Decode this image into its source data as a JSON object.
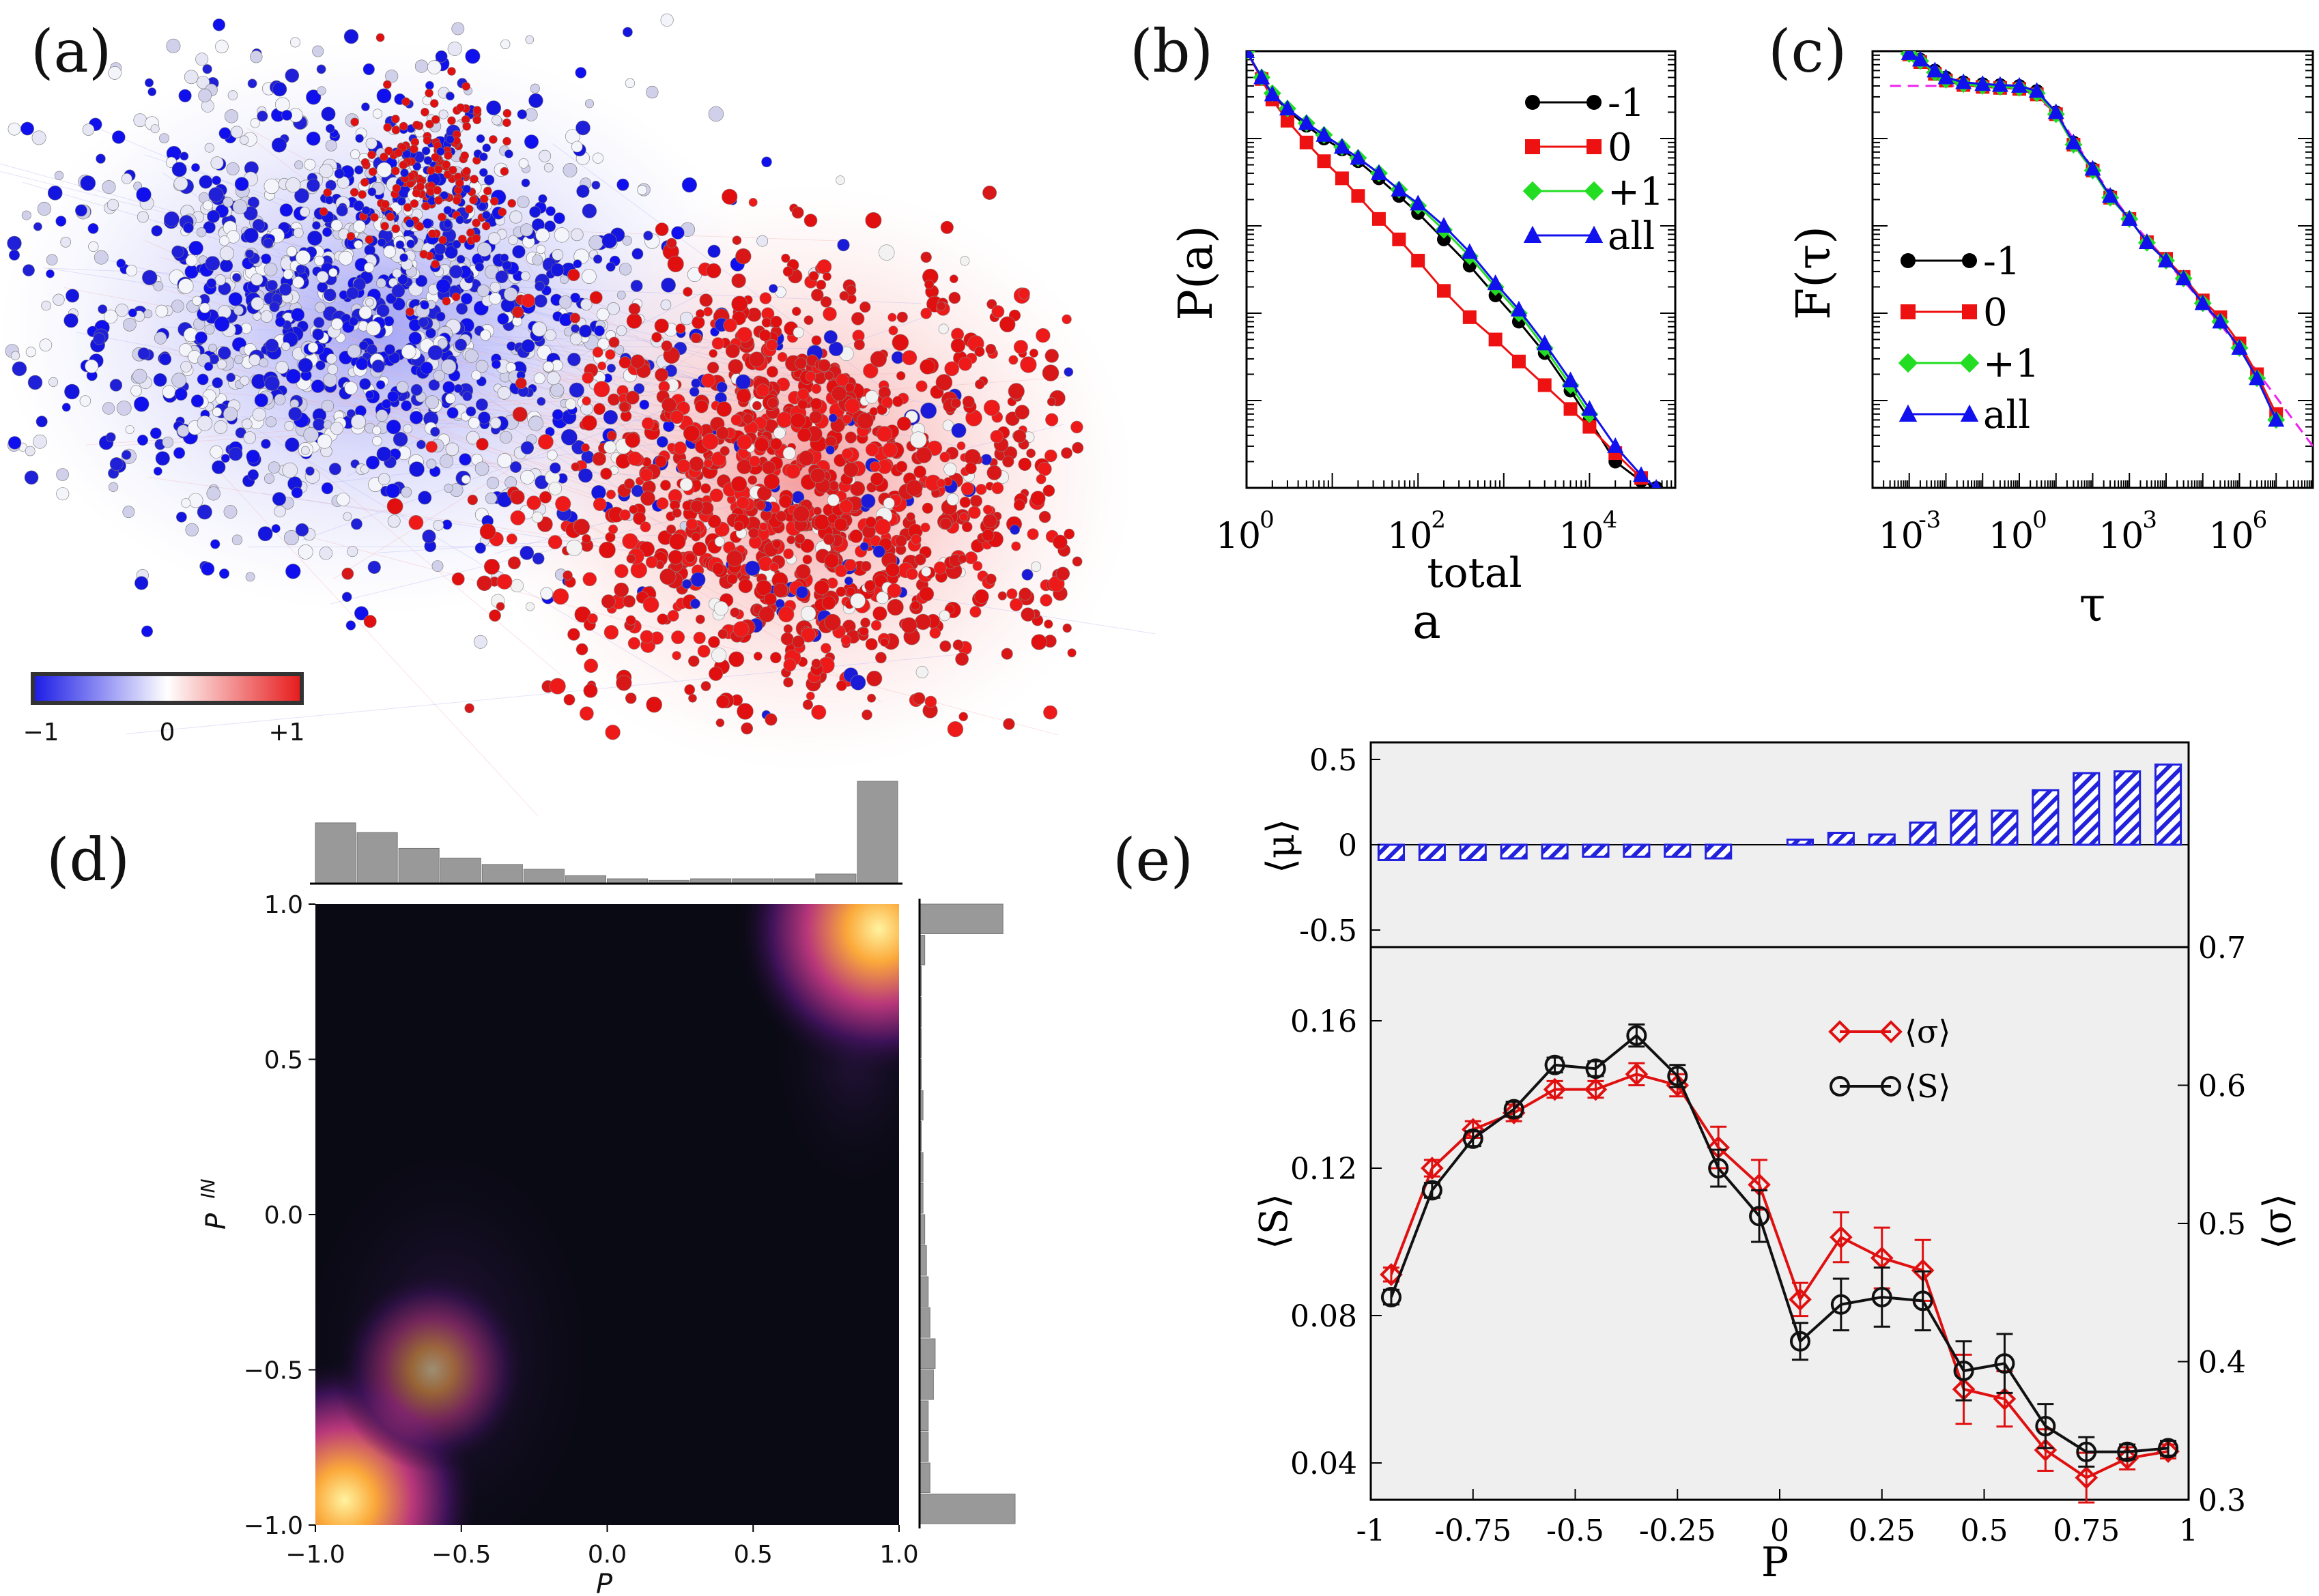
{
  "panel_labels": [
    "(a)",
    "(b)",
    "(c)",
    "(d)",
    "(e)"
  ],
  "colorbar": {
    "ticks": [
      "−1",
      "0",
      "+1"
    ],
    "colors": [
      "#1a1ae6",
      "#ffffff",
      "#e61a1a"
    ]
  },
  "chart_data": [
    {
      "id": "a",
      "type": "network",
      "colorbar": {
        "min": -1,
        "max": 1,
        "tick_labels": [
          "−1",
          "0",
          "+1"
        ]
      }
    },
    {
      "id": "b",
      "type": "line",
      "log_x": true,
      "log_y": true,
      "xlabel": "a",
      "xlabel_sup": "total",
      "ylabel": "P(a)",
      "x_ticks": [
        1,
        100,
        10000
      ],
      "x_tick_labels": [
        "10",
        "10",
        "10"
      ],
      "x_tick_exps": [
        "0",
        "2",
        "4"
      ],
      "xlim": [
        1,
        100000
      ],
      "ylim": [
        1e-05,
        1
      ],
      "legend": [
        "-1",
        "0",
        "+1",
        "all"
      ],
      "legend_position": "top-right",
      "colors": {
        "-1": "#000000",
        "0": "#ee1111",
        "+1": "#22dd22",
        "all": "#1111ee"
      },
      "series": [
        {
          "name": "-1",
          "marker": "circle",
          "x": [
            1,
            1.5,
            2,
            3,
            5,
            8,
            13,
            20,
            35,
            60,
            100,
            200,
            400,
            800,
            1500,
            3000,
            6000,
            10000,
            20000,
            40000,
            60000
          ],
          "y": [
            1,
            0.5,
            0.32,
            0.21,
            0.14,
            0.1,
            0.075,
            0.055,
            0.035,
            0.022,
            0.014,
            0.007,
            0.0035,
            0.0016,
            0.0008,
            0.00035,
            0.00013,
            6e-05,
            2e-05,
            1.2e-05,
            1e-05
          ]
        },
        {
          "name": "0",
          "marker": "square",
          "x": [
            1,
            1.5,
            2,
            3,
            5,
            8,
            13,
            20,
            35,
            60,
            100,
            200,
            400,
            800,
            1500,
            3000,
            6000,
            10000,
            20000,
            40000
          ],
          "y": [
            1,
            0.48,
            0.28,
            0.16,
            0.09,
            0.055,
            0.035,
            0.022,
            0.012,
            0.007,
            0.004,
            0.0018,
            0.0009,
            0.0005,
            0.00028,
            0.00015,
            8e-05,
            5e-05,
            2.5e-05,
            1.3e-05
          ]
        },
        {
          "name": "+1",
          "marker": "diamond",
          "x": [
            1,
            1.5,
            2,
            3,
            5,
            8,
            13,
            20,
            35,
            60,
            100,
            200,
            400,
            800,
            1500,
            3000,
            6000,
            10000
          ],
          "y": [
            1,
            0.5,
            0.33,
            0.22,
            0.15,
            0.11,
            0.08,
            0.06,
            0.04,
            0.026,
            0.017,
            0.009,
            0.0045,
            0.002,
            0.001,
            0.0004,
            0.00015,
            7e-05
          ]
        },
        {
          "name": "all",
          "marker": "triangle",
          "x": [
            1,
            1.5,
            2,
            3,
            5,
            8,
            13,
            20,
            35,
            60,
            100,
            200,
            400,
            800,
            1500,
            3000,
            6000,
            10000,
            20000,
            40000,
            60000
          ],
          "y": [
            1,
            0.5,
            0.32,
            0.22,
            0.15,
            0.11,
            0.08,
            0.06,
            0.04,
            0.026,
            0.018,
            0.01,
            0.005,
            0.0022,
            0.0011,
            0.00045,
            0.00017,
            8e-05,
            3e-05,
            1.4e-05,
            1e-05
          ]
        }
      ]
    },
    {
      "id": "c",
      "type": "line",
      "log_x": true,
      "log_y": true,
      "xlabel": "τ",
      "ylabel": "F(τ)",
      "x_ticks": [
        0.001,
        1,
        1000,
        1000000
      ],
      "x_tick_labels": [
        "10",
        "10",
        "10",
        "10"
      ],
      "x_tick_exps": [
        "-3",
        "0",
        "3",
        "6"
      ],
      "xlim": [
        0.0001,
        100000000
      ],
      "ylim": [
        1e-05,
        1
      ],
      "legend": [
        "-1",
        "0",
        "+1",
        "all"
      ],
      "legend_position": "center-left",
      "fit_color": "#ee22ee",
      "fit_line": {
        "x": [
          0.0003,
          0.01,
          1,
          10,
          100,
          1000,
          10000,
          100000,
          1000000,
          100000000
        ],
        "y": [
          0.4,
          0.4,
          0.4,
          0.2,
          0.045,
          0.012,
          0.004,
          0.0013,
          0.0004,
          3e-05
        ]
      },
      "series": [
        {
          "name": "-1",
          "marker": "circle",
          "x": [
            0.001,
            0.002,
            0.005,
            0.01,
            0.03,
            0.1,
            0.3,
            1,
            3,
            10,
            30,
            100,
            300,
            1000,
            3000,
            10000,
            30000,
            100000,
            300000,
            1000000,
            3000000,
            10000000
          ],
          "y": [
            0.95,
            0.8,
            0.6,
            0.5,
            0.44,
            0.42,
            0.41,
            0.4,
            0.35,
            0.2,
            0.09,
            0.045,
            0.022,
            0.012,
            0.0065,
            0.004,
            0.0025,
            0.0013,
            0.0008,
            0.0004,
            0.00018,
            6e-05
          ]
        },
        {
          "name": "0",
          "marker": "square",
          "x": [
            0.001,
            0.002,
            0.005,
            0.01,
            0.03,
            0.1,
            0.3,
            1,
            3,
            10,
            30,
            100,
            300,
            1000,
            3000,
            10000,
            30000,
            100000,
            300000,
            1000000,
            3000000,
            10000000
          ],
          "y": [
            0.92,
            0.75,
            0.55,
            0.46,
            0.41,
            0.39,
            0.38,
            0.37,
            0.32,
            0.19,
            0.085,
            0.043,
            0.021,
            0.012,
            0.0065,
            0.0042,
            0.0026,
            0.0014,
            0.0009,
            0.00045,
            0.0002,
            7e-05
          ]
        },
        {
          "name": "+1",
          "marker": "diamond",
          "x": [
            0.001,
            0.002,
            0.005,
            0.01,
            0.03,
            0.1,
            0.3,
            1,
            3,
            10,
            30,
            100,
            300,
            1000,
            3000,
            10000,
            30000,
            100000,
            300000,
            1000000,
            3000000,
            10000000
          ],
          "y": [
            0.93,
            0.77,
            0.57,
            0.47,
            0.42,
            0.4,
            0.39,
            0.38,
            0.33,
            0.19,
            0.085,
            0.043,
            0.021,
            0.012,
            0.0064,
            0.004,
            0.0025,
            0.0013,
            0.0008,
            0.0004,
            0.00018,
            6e-05
          ]
        },
        {
          "name": "all",
          "marker": "triangle",
          "x": [
            0.001,
            0.002,
            0.005,
            0.01,
            0.03,
            0.1,
            0.3,
            1,
            3,
            10,
            30,
            100,
            300,
            1000,
            3000,
            10000,
            30000,
            100000,
            300000,
            1000000,
            3000000,
            10000000
          ],
          "y": [
            0.95,
            0.8,
            0.6,
            0.5,
            0.44,
            0.42,
            0.41,
            0.4,
            0.35,
            0.2,
            0.09,
            0.045,
            0.022,
            0.012,
            0.0065,
            0.004,
            0.0025,
            0.0013,
            0.0008,
            0.0004,
            0.00018,
            6e-05
          ]
        }
      ]
    },
    {
      "id": "d",
      "type": "heatmap",
      "xlabel": "P",
      "ylabel": "P",
      "ylabel_sup": "IN",
      "xlim": [
        -1,
        1
      ],
      "ylim": [
        -1,
        1
      ],
      "x_ticks": [
        -1,
        -0.5,
        0,
        0.5,
        1
      ],
      "x_tick_labels": [
        "−1.0",
        "−0.5",
        "0.0",
        "0.5",
        "1.0"
      ],
      "y_ticks": [
        -1,
        -0.5,
        0,
        0.5,
        1
      ],
      "y_tick_labels": [
        "−1.0",
        "−0.5",
        "0.0",
        "0.5",
        "1.0"
      ],
      "background": "#0a0a14",
      "density_peaks": [
        {
          "x": 0.93,
          "y": 0.92,
          "weight": 1.0
        },
        {
          "x": -0.9,
          "y": -0.92,
          "weight": 0.9
        },
        {
          "x": -0.6,
          "y": -0.5,
          "weight": 0.25
        }
      ],
      "marginal_top": [
        0.38,
        0.32,
        0.22,
        0.16,
        0.12,
        0.09,
        0.05,
        0.03,
        0.02,
        0.03,
        0.03,
        0.03,
        0.06,
        0.64
      ],
      "marginal_right": [
        0.55,
        0.06,
        0.05,
        0.05,
        0.08,
        0.09,
        0.06,
        0.05,
        0.04,
        0.03,
        0.02,
        0.02,
        0.01,
        0.02,
        0.01,
        0.01,
        0.01,
        0.01,
        0.03,
        0.48
      ]
    },
    {
      "id": "e",
      "type": "bar+line",
      "xlabel": "P",
      "xlim": [
        -1,
        1
      ],
      "x_ticks": [
        -1,
        -0.75,
        -0.5,
        -0.25,
        0,
        0.25,
        0.5,
        0.75,
        1
      ],
      "x_tick_labels": [
        "-1",
        "-0.75",
        "-0.5",
        "-0.25",
        "0",
        "0.25",
        "0.5",
        "0.75",
        "1"
      ],
      "top": {
        "ylabel": "⟨μ⟩",
        "ylim": [
          -0.6,
          0.6
        ],
        "y_ticks": [
          -0.5,
          0,
          0.5
        ],
        "y_tick_labels": [
          "-0.5",
          "0",
          "0.5"
        ],
        "bar_color": "#2222dd",
        "x": [
          -0.95,
          -0.85,
          -0.75,
          -0.65,
          -0.55,
          -0.45,
          -0.35,
          -0.25,
          -0.15,
          -0.05,
          0.05,
          0.15,
          0.25,
          0.35,
          0.45,
          0.55,
          0.65,
          0.75,
          0.85,
          0.95
        ],
        "values": [
          -0.09,
          -0.09,
          -0.09,
          -0.08,
          -0.08,
          -0.07,
          -0.07,
          -0.07,
          -0.08,
          0,
          0.03,
          0.07,
          0.06,
          0.13,
          0.2,
          0.2,
          0.32,
          0.42,
          0.43,
          0.47
        ]
      },
      "bottom": {
        "ylabel_left": "⟨S⟩",
        "ylabel_right": "⟨σ⟩",
        "ylim_left": [
          0.03,
          0.18
        ],
        "ylim_right": [
          0.3,
          0.7
        ],
        "y_ticks_left": [
          0.04,
          0.08,
          0.12,
          0.16
        ],
        "y_tick_labels_left": [
          "0.04",
          "0.08",
          "0.12",
          "0.16"
        ],
        "y_ticks_right": [
          0.3,
          0.4,
          0.5,
          0.6,
          0.7
        ],
        "y_tick_labels_right": [
          "0.3",
          "0.4",
          "0.5",
          "0.6",
          "0.7"
        ],
        "legend": [
          "⟨σ⟩",
          "⟨S⟩"
        ],
        "series": [
          {
            "name": "⟨σ⟩",
            "axis": "right",
            "color": "#e01010",
            "marker": "diamond",
            "x": [
              -0.95,
              -0.85,
              -0.75,
              -0.65,
              -0.55,
              -0.45,
              -0.35,
              -0.25,
              -0.15,
              -0.05,
              0.05,
              0.15,
              0.25,
              0.35,
              0.45,
              0.55,
              0.65,
              0.75,
              0.85,
              0.95
            ],
            "values": [
              0.463,
              0.54,
              0.568,
              0.58,
              0.597,
              0.597,
              0.608,
              0.6,
              0.555,
              0.528,
              0.445,
              0.49,
              0.475,
              0.466,
              0.38,
              0.373,
              0.336,
              0.316,
              0.33,
              0.335
            ],
            "errors": [
              0.005,
              0.006,
              0.006,
              0.006,
              0.006,
              0.006,
              0.008,
              0.008,
              0.015,
              0.018,
              0.012,
              0.018,
              0.022,
              0.022,
              0.025,
              0.02,
              0.015,
              0.018,
              0.008,
              0.005
            ]
          },
          {
            "name": "⟨S⟩",
            "axis": "left",
            "color": "#111111",
            "marker": "circle",
            "x": [
              -0.95,
              -0.85,
              -0.75,
              -0.65,
              -0.55,
              -0.45,
              -0.35,
              -0.25,
              -0.15,
              -0.05,
              0.05,
              0.15,
              0.25,
              0.35,
              0.45,
              0.55,
              0.65,
              0.75,
              0.85,
              0.95
            ],
            "values": [
              0.085,
              0.114,
              0.128,
              0.136,
              0.148,
              0.147,
              0.156,
              0.145,
              0.12,
              0.107,
              0.073,
              0.083,
              0.085,
              0.084,
              0.065,
              0.067,
              0.05,
              0.043,
              0.043,
              0.044
            ],
            "errors": [
              0.002,
              0.002,
              0.002,
              0.002,
              0.002,
              0.002,
              0.003,
              0.003,
              0.005,
              0.007,
              0.005,
              0.007,
              0.008,
              0.008,
              0.008,
              0.008,
              0.006,
              0.004,
              0.002,
              0.002
            ]
          }
        ]
      }
    }
  ]
}
